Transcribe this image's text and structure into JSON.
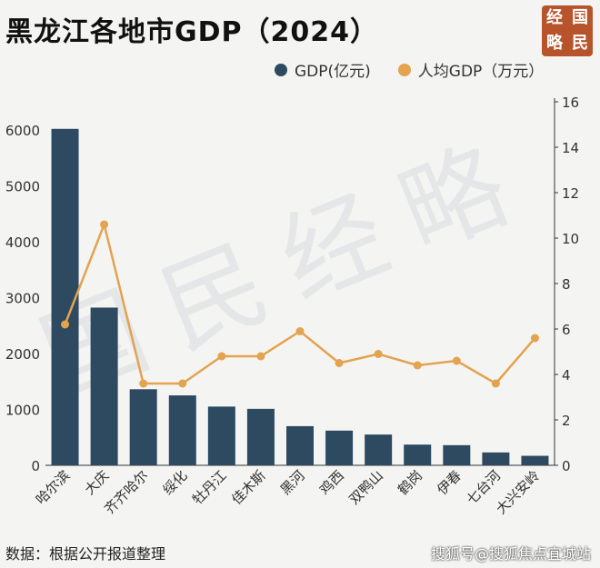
{
  "title": "黑龙江各地市GDP（2024）",
  "logo": {
    "chars": [
      "经",
      "国",
      "略",
      "民"
    ]
  },
  "watermark": "国民经略",
  "source": "数据：根据公开报道整理",
  "credit": "搜狐号@搜狐焦点宜城站",
  "colors": {
    "bar": "#2d4a61",
    "line": "#e3a34f",
    "logo": "#b8542c"
  },
  "chart_data": {
    "type": "bar",
    "categories": [
      "哈尔滨",
      "大庆",
      "齐齐哈尔",
      "绥化",
      "牡丹江",
      "佳木斯",
      "黑河",
      "鸡西",
      "双鸭山",
      "鹤岗",
      "伊春",
      "七台河",
      "大兴安岭"
    ],
    "series": [
      {
        "name": "GDP(亿元)",
        "type": "bar",
        "axis": "left",
        "values": [
          6016,
          2820,
          1360,
          1250,
          1050,
          1010,
          700,
          620,
          550,
          370,
          360,
          230,
          170
        ]
      },
      {
        "name": "人均GDP（万元）",
        "type": "line",
        "axis": "right",
        "values": [
          6.2,
          10.6,
          3.6,
          3.6,
          4.8,
          4.8,
          5.9,
          4.5,
          4.9,
          4.4,
          4.6,
          3.6,
          5.6
        ]
      }
    ],
    "y_left": {
      "min": 0,
      "max": 6500,
      "ticks": [
        0,
        1000,
        2000,
        3000,
        4000,
        5000,
        6000
      ]
    },
    "y_right": {
      "min": 0,
      "max": 16,
      "ticks": [
        0,
        2,
        4,
        6,
        8,
        10,
        12,
        14,
        16
      ]
    },
    "legend_position": "top-right",
    "grid": false
  }
}
